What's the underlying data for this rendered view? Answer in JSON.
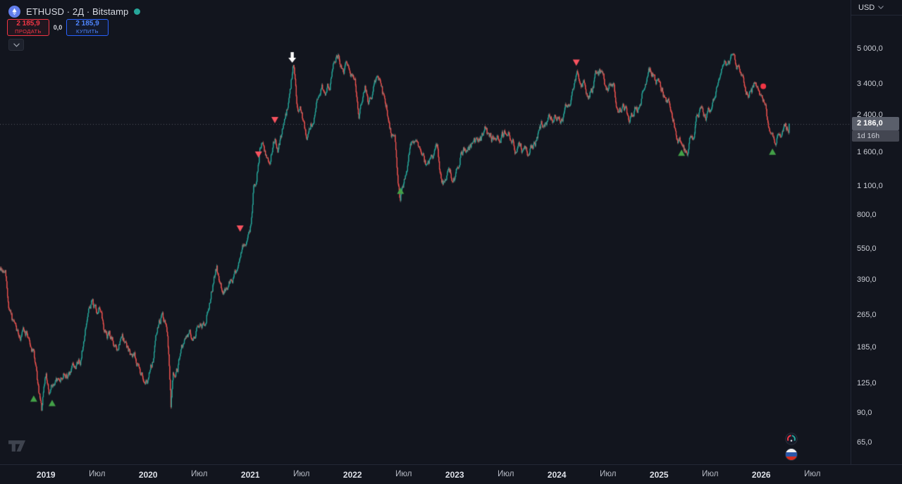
{
  "colors": {
    "bg": "#12151e",
    "up": "#26a69a",
    "down": "#ef5350",
    "sell": "#f23645",
    "buy": "#2962ff",
    "accent_dot": "#26a69a",
    "eth_icon_bg": "#627eea",
    "price_badge_bg": "#5a5f6b",
    "countdown_bg": "#434651",
    "marker_up": "#43a047",
    "marker_down": "#f7525f",
    "marker_arrow": "#ffffff",
    "marker_dot": "#f23645",
    "price_line": "#8c909b"
  },
  "header": {
    "symbol_title": "ETHUSD · 2Д · Bitstamp"
  },
  "trade_panel": {
    "sell_price": "2 185,9",
    "sell_label": "ПРОДАТЬ",
    "spread": "0,0",
    "buy_price": "2 185,9",
    "buy_label": "КУПИТЬ"
  },
  "price_axis": {
    "currency": "USD",
    "last_price": "2 186,0",
    "countdown": "1d 16h"
  },
  "chart_data": {
    "type": "candlestick",
    "symbol": "ETHUSD",
    "interval": "2Д",
    "exchange": "Bitstamp",
    "scale": "log",
    "title": "ETHUSD · 2Д · Bitstamp",
    "x_domain": [
      2018.55,
      2026.275
    ],
    "last_price": 2186.0,
    "y_ticks": [
      {
        "v": 5000,
        "label": "5 000,0"
      },
      {
        "v": 3400,
        "label": "3 400,0"
      },
      {
        "v": 2400,
        "label": "2 400,0"
      },
      {
        "v": 1600,
        "label": "1 600,0"
      },
      {
        "v": 1100,
        "label": "1 100,0"
      },
      {
        "v": 800,
        "label": "800,0"
      },
      {
        "v": 550,
        "label": "550,0"
      },
      {
        "v": 390,
        "label": "390,0"
      },
      {
        "v": 265,
        "label": "265,0"
      },
      {
        "v": 185,
        "label": "185,0"
      },
      {
        "v": 125,
        "label": "125,0"
      },
      {
        "v": 90,
        "label": "90,0"
      },
      {
        "v": 65,
        "label": "65,0"
      }
    ],
    "x_ticks": [
      {
        "t": 2019.0,
        "label": "2019",
        "bold": true
      },
      {
        "t": 2019.5,
        "label": "Июл"
      },
      {
        "t": 2020.0,
        "label": "2020",
        "bold": true
      },
      {
        "t": 2020.5,
        "label": "Июл"
      },
      {
        "t": 2021.0,
        "label": "2021",
        "bold": true
      },
      {
        "t": 2021.5,
        "label": "Июл"
      },
      {
        "t": 2022.0,
        "label": "2022",
        "bold": true
      },
      {
        "t": 2022.5,
        "label": "Июл"
      },
      {
        "t": 2023.0,
        "label": "2023",
        "bold": true
      },
      {
        "t": 2023.5,
        "label": "Июл"
      },
      {
        "t": 2024.0,
        "label": "2024",
        "bold": true
      },
      {
        "t": 2024.5,
        "label": "Июл"
      },
      {
        "t": 2025.0,
        "label": "2025",
        "bold": true
      },
      {
        "t": 2025.5,
        "label": "Июл"
      },
      {
        "t": 2026.0,
        "label": "2026",
        "bold": true
      },
      {
        "t": 2026.5,
        "label": "Июл"
      }
    ],
    "price_path": [
      [
        2018.55,
        445
      ],
      [
        2018.6,
        415
      ],
      [
        2018.63,
        290
      ],
      [
        2018.68,
        228
      ],
      [
        2018.72,
        205
      ],
      [
        2018.78,
        212
      ],
      [
        2018.83,
        205
      ],
      [
        2018.88,
        172
      ],
      [
        2018.92,
        115
      ],
      [
        2018.955,
        88
      ],
      [
        2019.0,
        140
      ],
      [
        2019.03,
        106
      ],
      [
        2019.06,
        120
      ],
      [
        2019.1,
        122
      ],
      [
        2019.16,
        136
      ],
      [
        2019.22,
        139
      ],
      [
        2019.28,
        143
      ],
      [
        2019.34,
        168
      ],
      [
        2019.4,
        252
      ],
      [
        2019.45,
        305
      ],
      [
        2019.49,
        268
      ],
      [
        2019.52,
        298
      ],
      [
        2019.56,
        228
      ],
      [
        2019.62,
        212
      ],
      [
        2019.66,
        188
      ],
      [
        2019.7,
        172
      ],
      [
        2019.74,
        200
      ],
      [
        2019.78,
        186
      ],
      [
        2019.82,
        172
      ],
      [
        2019.86,
        184
      ],
      [
        2019.9,
        152
      ],
      [
        2019.94,
        134
      ],
      [
        2020.0,
        131
      ],
      [
        2020.05,
        162
      ],
      [
        2020.09,
        224
      ],
      [
        2020.13,
        264
      ],
      [
        2020.17,
        238
      ],
      [
        2020.2,
        165
      ],
      [
        2020.22,
        96
      ],
      [
        2020.24,
        134
      ],
      [
        2020.28,
        141
      ],
      [
        2020.32,
        172
      ],
      [
        2020.36,
        196
      ],
      [
        2020.4,
        211
      ],
      [
        2020.44,
        206
      ],
      [
        2020.48,
        231
      ],
      [
        2020.52,
        229
      ],
      [
        2020.56,
        242
      ],
      [
        2020.6,
        318
      ],
      [
        2020.64,
        398
      ],
      [
        2020.67,
        438
      ],
      [
        2020.7,
        352
      ],
      [
        2020.74,
        344
      ],
      [
        2020.78,
        362
      ],
      [
        2020.82,
        388
      ],
      [
        2020.86,
        422
      ],
      [
        2020.9,
        558
      ],
      [
        2020.94,
        598
      ],
      [
        2020.98,
        642
      ],
      [
        2021.01,
        762
      ],
      [
        2021.03,
        1148
      ],
      [
        2021.06,
        1252
      ],
      [
        2021.09,
        1655
      ],
      [
        2021.12,
        1782
      ],
      [
        2021.15,
        1552
      ],
      [
        2021.18,
        1455
      ],
      [
        2021.21,
        1652
      ],
      [
        2021.24,
        1848
      ],
      [
        2021.27,
        1608
      ],
      [
        2021.3,
        1905
      ],
      [
        2021.33,
        2152
      ],
      [
        2021.36,
        2555
      ],
      [
        2021.39,
        3205
      ],
      [
        2021.415,
        4160
      ],
      [
        2021.43,
        3850
      ],
      [
        2021.45,
        2705
      ],
      [
        2021.47,
        2355
      ],
      [
        2021.5,
        2455
      ],
      [
        2021.53,
        1955
      ],
      [
        2021.55,
        1805
      ],
      [
        2021.58,
        2155
      ],
      [
        2021.61,
        2305
      ],
      [
        2021.64,
        2655
      ],
      [
        2021.67,
        3155
      ],
      [
        2021.7,
        3255
      ],
      [
        2021.73,
        3055
      ],
      [
        2021.76,
        3255
      ],
      [
        2021.79,
        3505
      ],
      [
        2021.82,
        4355
      ],
      [
        2021.855,
        4825
      ],
      [
        2021.88,
        4255
      ],
      [
        2021.91,
        4155
      ],
      [
        2021.94,
        4055
      ],
      [
        2021.97,
        3855
      ],
      [
        2022.0,
        3725
      ],
      [
        2022.03,
        3255
      ],
      [
        2022.06,
        2455
      ],
      [
        2022.09,
        2555
      ],
      [
        2022.12,
        3055
      ],
      [
        2022.15,
        2655
      ],
      [
        2022.18,
        2905
      ],
      [
        2022.22,
        3255
      ],
      [
        2022.26,
        3455
      ],
      [
        2022.29,
        2955
      ],
      [
        2022.32,
        2755
      ],
      [
        2022.35,
        2355
      ],
      [
        2022.38,
        1955
      ],
      [
        2022.41,
        1805
      ],
      [
        2022.44,
        1255
      ],
      [
        2022.465,
        955
      ],
      [
        2022.49,
        1105
      ],
      [
        2022.52,
        1255
      ],
      [
        2022.55,
        1505
      ],
      [
        2022.58,
        1705
      ],
      [
        2022.62,
        1955
      ],
      [
        2022.65,
        1605
      ],
      [
        2022.68,
        1505
      ],
      [
        2022.71,
        1355
      ],
      [
        2022.74,
        1305
      ],
      [
        2022.77,
        1455
      ],
      [
        2022.8,
        1555
      ],
      [
        2022.83,
        1605
      ],
      [
        2022.86,
        1255
      ],
      [
        2022.89,
        1155
      ],
      [
        2022.93,
        1205
      ],
      [
        2022.97,
        1192
      ],
      [
        2023.0,
        1212
      ],
      [
        2023.03,
        1422
      ],
      [
        2023.06,
        1582
      ],
      [
        2023.09,
        1652
      ],
      [
        2023.12,
        1552
      ],
      [
        2023.15,
        1682
      ],
      [
        2023.18,
        1802
      ],
      [
        2023.22,
        1782
      ],
      [
        2023.26,
        1852
      ],
      [
        2023.3,
        2082
      ],
      [
        2023.33,
        1882
      ],
      [
        2023.37,
        1822
      ],
      [
        2023.4,
        1782
      ],
      [
        2023.44,
        1882
      ],
      [
        2023.48,
        1922
      ],
      [
        2023.52,
        1882
      ],
      [
        2023.56,
        1832
      ],
      [
        2023.6,
        1652
      ],
      [
        2023.64,
        1642
      ],
      [
        2023.68,
        1622
      ],
      [
        2023.72,
        1562
      ],
      [
        2023.76,
        1622
      ],
      [
        2023.8,
        1822
      ],
      [
        2023.84,
        2052
      ],
      [
        2023.88,
        2062
      ],
      [
        2023.92,
        2282
      ],
      [
        2023.96,
        2322
      ],
      [
        2024.0,
        2352
      ],
      [
        2024.03,
        2282
      ],
      [
        2024.06,
        2422
      ],
      [
        2024.1,
        2702
      ],
      [
        2024.14,
        3152
      ],
      [
        2024.17,
        3552
      ],
      [
        2024.2,
        3902
      ],
      [
        2024.22,
        3652
      ],
      [
        2024.25,
        3452
      ],
      [
        2024.28,
        3202
      ],
      [
        2024.31,
        3052
      ],
      [
        2024.34,
        3152
      ],
      [
        2024.38,
        3702
      ],
      [
        2024.42,
        3752
      ],
      [
        2024.46,
        3402
      ],
      [
        2024.5,
        3052
      ],
      [
        2024.53,
        3352
      ],
      [
        2024.56,
        3152
      ],
      [
        2024.585,
        2452
      ],
      [
        2024.61,
        2552
      ],
      [
        2024.64,
        2702
      ],
      [
        2024.67,
        2502
      ],
      [
        2024.7,
        2402
      ],
      [
        2024.73,
        2352
      ],
      [
        2024.76,
        2502
      ],
      [
        2024.79,
        2482
      ],
      [
        2024.82,
        2702
      ],
      [
        2024.85,
        3302
      ],
      [
        2024.88,
        3652
      ],
      [
        2024.91,
        3952
      ],
      [
        2024.93,
        3852
      ],
      [
        2024.96,
        3452
      ],
      [
        2025.0,
        3352
      ],
      [
        2025.03,
        3152
      ],
      [
        2025.06,
        2752
      ],
      [
        2025.09,
        2702
      ],
      [
        2025.12,
        2252
      ],
      [
        2025.15,
        2102
      ],
      [
        2025.18,
        1952
      ],
      [
        2025.21,
        1852
      ],
      [
        2025.25,
        1602
      ],
      [
        2025.27,
        1502
      ],
      [
        2025.3,
        1802
      ],
      [
        2025.33,
        1852
      ],
      [
        2025.36,
        2252
      ],
      [
        2025.39,
        2552
      ],
      [
        2025.43,
        2502
      ],
      [
        2025.47,
        2452
      ],
      [
        2025.5,
        2552
      ],
      [
        2025.54,
        3052
      ],
      [
        2025.58,
        3652
      ],
      [
        2025.61,
        4252
      ],
      [
        2025.64,
        4752
      ],
      [
        2025.66,
        4452
      ],
      [
        2025.69,
        4302
      ],
      [
        2025.72,
        4452
      ],
      [
        2025.75,
        4052
      ],
      [
        2025.78,
        3902
      ],
      [
        2025.81,
        3552
      ],
      [
        2025.84,
        3352
      ],
      [
        2025.87,
        3052
      ],
      [
        2025.9,
        3152
      ],
      [
        2025.93,
        3352
      ],
      [
        2025.96,
        3052
      ],
      [
        2026.0,
        2952
      ],
      [
        2026.03,
        2652
      ],
      [
        2026.06,
        2252
      ],
      [
        2026.09,
        1952
      ],
      [
        2026.12,
        1782
      ],
      [
        2026.15,
        1852
      ],
      [
        2026.18,
        2002
      ],
      [
        2026.21,
        2082
      ],
      [
        2026.24,
        2122
      ],
      [
        2026.275,
        2186
      ]
    ],
    "markers": {
      "long_entries": [
        {
          "t": 2018.88,
          "price": 105
        },
        {
          "t": 2019.06,
          "price": 100
        },
        {
          "t": 2022.47,
          "price": 1040
        },
        {
          "t": 2025.22,
          "price": 1580
        },
        {
          "t": 2026.11,
          "price": 1600
        }
      ],
      "short_entries": [
        {
          "t": 2020.9,
          "price": 690
        },
        {
          "t": 2021.08,
          "price": 1560
        },
        {
          "t": 2021.24,
          "price": 2280
        },
        {
          "t": 2024.19,
          "price": 4300
        }
      ],
      "arrow_down": {
        "t": 2021.41,
        "price": 4280
      },
      "dot": {
        "t": 2026.02,
        "price": 3300
      }
    }
  }
}
